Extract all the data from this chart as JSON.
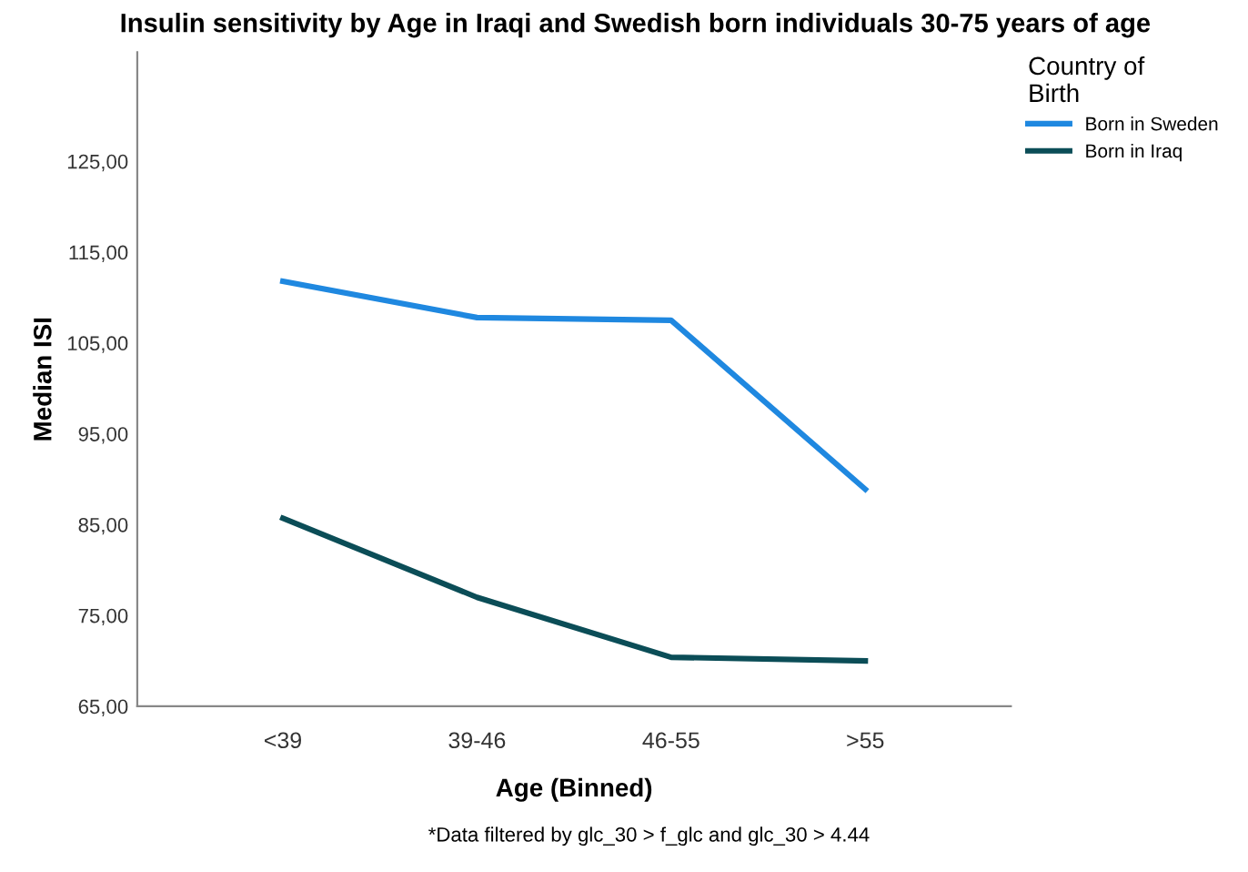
{
  "chart_data": {
    "type": "line",
    "title": "Insulin sensitivity by Age in Iraqi and Swedish born individuals 30-75 years of age",
    "xlabel": "Age (Binned)",
    "ylabel": "Median ISI",
    "legend_title": "Country of\nBirth",
    "categories": [
      "<39",
      "39-46",
      "46-55",
      ">55"
    ],
    "series": [
      {
        "name": "Born in Sweden",
        "color": "#1f88e0",
        "values": [
          111.8,
          107.8,
          107.5,
          88.9
        ]
      },
      {
        "name": "Born in Iraq",
        "color": "#0b4d57",
        "values": [
          85.7,
          77.0,
          70.4,
          70.0
        ]
      }
    ],
    "ylim": [
      65,
      137
    ],
    "yticks": [
      {
        "value": 65,
        "label": "65,00"
      },
      {
        "value": 75,
        "label": "75,00"
      },
      {
        "value": 85,
        "label": "85,00"
      },
      {
        "value": 95,
        "label": "95,00"
      },
      {
        "value": 105,
        "label": "105,00"
      },
      {
        "value": 115,
        "label": "115,00"
      },
      {
        "value": 125,
        "label": "125,00"
      }
    ],
    "legend": "right",
    "grid": false,
    "marker": "none",
    "line_style": "solid",
    "annotations": [
      "*Data filtered by glc_30 > f_glc and glc_30 > 4.44"
    ]
  }
}
